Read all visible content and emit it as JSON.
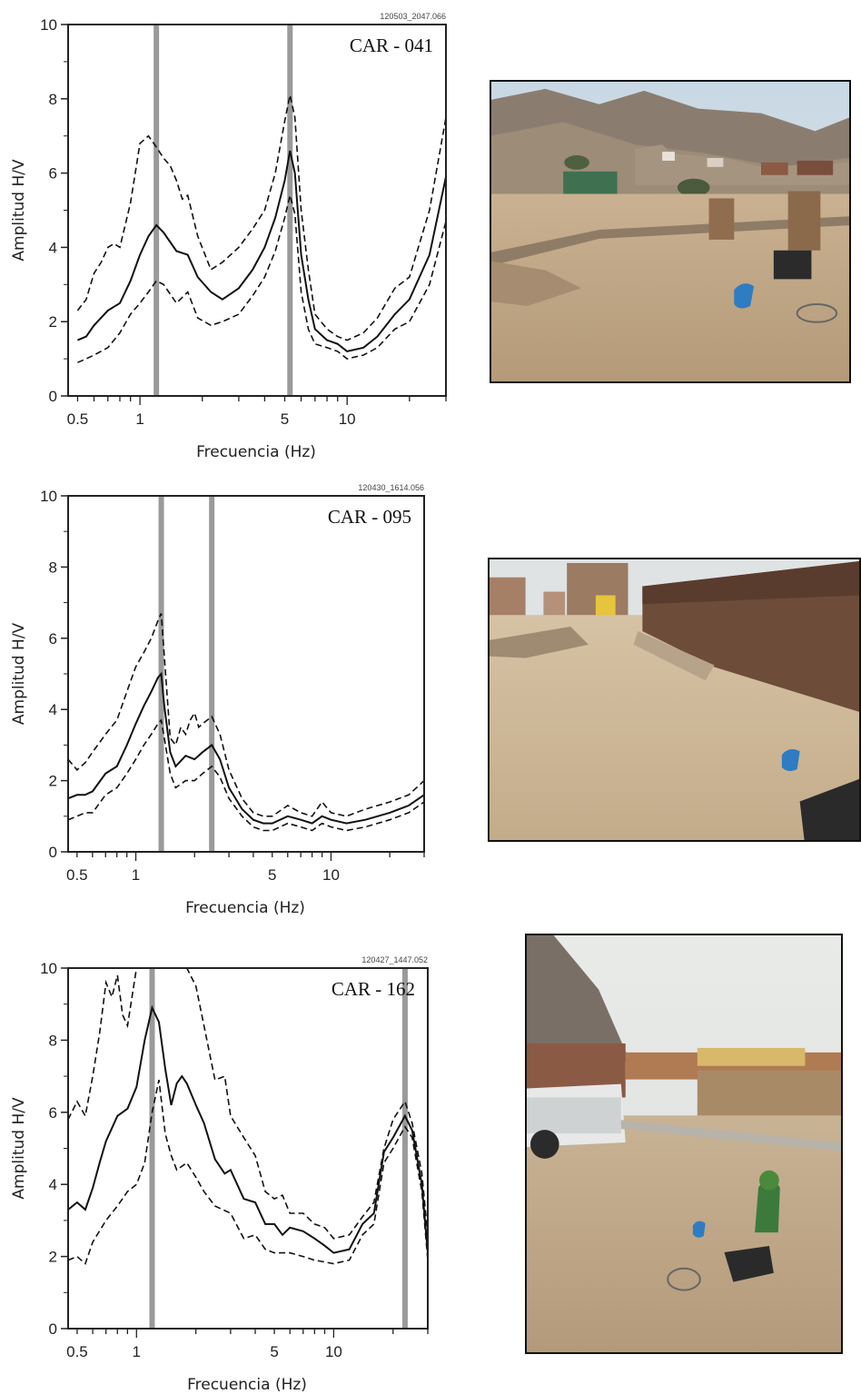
{
  "chart_data": [
    {
      "type": "line",
      "title": "CAR - 041",
      "file_id": "120503_2047.066",
      "xlabel": "Frecuencia (Hz)",
      "ylabel": "Amplitud H/V",
      "xscale": "log",
      "xlim": [
        0.45,
        30
      ],
      "ylim": [
        0,
        10
      ],
      "xticks": [
        {
          "v": 0.5,
          "label": "0.5"
        },
        {
          "v": 1,
          "label": "1"
        },
        {
          "v": 5,
          "label": "5"
        },
        {
          "v": 10,
          "label": "10"
        }
      ],
      "yticks": [
        0,
        2,
        4,
        6,
        8,
        10
      ],
      "peak_lines": [
        1.2,
        5.3
      ],
      "series": [
        {
          "role": "mean",
          "style": "solid",
          "x": [
            0.5,
            0.55,
            0.6,
            0.7,
            0.8,
            0.9,
            1.0,
            1.1,
            1.2,
            1.3,
            1.5,
            1.7,
            1.9,
            2.2,
            2.5,
            3.0,
            3.5,
            4.0,
            4.5,
            5.0,
            5.3,
            5.6,
            6.0,
            6.5,
            7.0,
            8.0,
            9.0,
            10,
            12,
            14,
            17,
            20,
            25,
            30
          ],
          "y": [
            1.5,
            1.6,
            1.9,
            2.3,
            2.5,
            3.1,
            3.8,
            4.3,
            4.6,
            4.4,
            3.9,
            3.8,
            3.2,
            2.8,
            2.6,
            2.9,
            3.4,
            4.0,
            4.8,
            5.8,
            6.6,
            6.0,
            3.8,
            2.6,
            1.8,
            1.5,
            1.4,
            1.2,
            1.3,
            1.6,
            2.2,
            2.6,
            3.8,
            5.9
          ]
        },
        {
          "role": "upper",
          "style": "dashed",
          "x": [
            0.5,
            0.55,
            0.6,
            0.65,
            0.7,
            0.75,
            0.8,
            0.9,
            1.0,
            1.1,
            1.2,
            1.3,
            1.4,
            1.5,
            1.6,
            1.7,
            1.9,
            2.2,
            2.5,
            3.0,
            3.5,
            4.0,
            4.5,
            5.0,
            5.3,
            5.6,
            6.0,
            6.5,
            7.0,
            8.0,
            9.0,
            10,
            12,
            14,
            17,
            20,
            25,
            30
          ],
          "y": [
            2.3,
            2.6,
            3.3,
            3.6,
            4.0,
            4.1,
            4.0,
            5.2,
            6.8,
            7.0,
            6.7,
            6.4,
            6.2,
            5.8,
            5.3,
            5.4,
            4.3,
            3.4,
            3.6,
            4.0,
            4.5,
            5.0,
            6.0,
            7.4,
            8.1,
            7.5,
            5.0,
            3.4,
            2.2,
            1.8,
            1.6,
            1.5,
            1.7,
            2.1,
            2.9,
            3.2,
            5.0,
            7.5
          ]
        },
        {
          "role": "lower",
          "style": "dashed",
          "x": [
            0.5,
            0.55,
            0.6,
            0.7,
            0.8,
            0.9,
            1.0,
            1.1,
            1.2,
            1.3,
            1.5,
            1.7,
            1.9,
            2.2,
            2.5,
            3.0,
            3.5,
            4.0,
            4.5,
            5.0,
            5.3,
            5.6,
            6.0,
            6.5,
            7.0,
            8.0,
            9.0,
            10,
            12,
            14,
            17,
            20,
            25,
            30
          ],
          "y": [
            0.9,
            1.0,
            1.1,
            1.3,
            1.7,
            2.2,
            2.5,
            2.8,
            3.1,
            3.0,
            2.5,
            2.8,
            2.1,
            1.9,
            2.0,
            2.2,
            2.7,
            3.2,
            3.9,
            4.8,
            5.4,
            4.9,
            2.8,
            1.8,
            1.4,
            1.3,
            1.2,
            1.0,
            1.1,
            1.3,
            1.8,
            2.0,
            3.0,
            4.7
          ]
        }
      ]
    },
    {
      "type": "line",
      "title": "CAR - 095",
      "file_id": "120430_1614.056",
      "xlabel": "Frecuencia (Hz)",
      "ylabel": "Amplitud H/V",
      "xscale": "log",
      "xlim": [
        0.45,
        30
      ],
      "ylim": [
        0,
        10
      ],
      "xticks": [
        {
          "v": 0.5,
          "label": "0.5"
        },
        {
          "v": 1,
          "label": "1"
        },
        {
          "v": 5,
          "label": "5"
        },
        {
          "v": 10,
          "label": "10"
        }
      ],
      "yticks": [
        0,
        2,
        4,
        6,
        8,
        10
      ],
      "peak_lines": [
        1.35,
        2.45
      ],
      "series": [
        {
          "role": "mean",
          "style": "solid",
          "x": [
            0.45,
            0.5,
            0.55,
            0.6,
            0.7,
            0.8,
            0.9,
            1.0,
            1.1,
            1.2,
            1.3,
            1.35,
            1.4,
            1.5,
            1.6,
            1.8,
            2.0,
            2.2,
            2.45,
            2.7,
            3.0,
            3.5,
            4.0,
            4.5,
            5.0,
            6.0,
            7.0,
            8.0,
            9.0,
            10,
            12,
            15,
            20,
            25,
            30
          ],
          "y": [
            1.5,
            1.6,
            1.6,
            1.7,
            2.2,
            2.4,
            3.0,
            3.6,
            4.1,
            4.5,
            4.9,
            5.0,
            4.1,
            2.8,
            2.4,
            2.7,
            2.6,
            2.8,
            3.0,
            2.6,
            1.8,
            1.2,
            0.9,
            0.8,
            0.8,
            1.0,
            0.9,
            0.8,
            1.0,
            0.9,
            0.8,
            0.9,
            1.1,
            1.3,
            1.6
          ]
        },
        {
          "role": "upper",
          "style": "dashed",
          "x": [
            0.45,
            0.5,
            0.55,
            0.6,
            0.7,
            0.8,
            0.9,
            1.0,
            1.1,
            1.2,
            1.3,
            1.35,
            1.4,
            1.5,
            1.6,
            1.7,
            1.8,
            1.9,
            2.0,
            2.1,
            2.2,
            2.45,
            2.7,
            3.0,
            3.5,
            4.0,
            4.5,
            5.0,
            6.0,
            7.0,
            8.0,
            9.0,
            10,
            12,
            15,
            20,
            25,
            30
          ],
          "y": [
            2.6,
            2.3,
            2.5,
            2.8,
            3.3,
            3.7,
            4.5,
            5.2,
            5.6,
            6.0,
            6.5,
            6.7,
            5.5,
            3.2,
            3.0,
            3.5,
            3.3,
            3.7,
            3.9,
            3.5,
            3.6,
            3.8,
            3.3,
            2.3,
            1.5,
            1.1,
            1.0,
            1.0,
            1.3,
            1.1,
            1.0,
            1.4,
            1.1,
            1.0,
            1.2,
            1.4,
            1.6,
            2.0
          ]
        },
        {
          "role": "lower",
          "style": "dashed",
          "x": [
            0.45,
            0.5,
            0.55,
            0.6,
            0.7,
            0.8,
            0.9,
            1.0,
            1.1,
            1.2,
            1.3,
            1.35,
            1.4,
            1.5,
            1.6,
            1.8,
            2.0,
            2.2,
            2.45,
            2.7,
            3.0,
            3.5,
            4.0,
            4.5,
            5.0,
            6.0,
            7.0,
            8.0,
            9.0,
            10,
            12,
            15,
            20,
            25,
            30
          ],
          "y": [
            0.9,
            1.0,
            1.1,
            1.1,
            1.6,
            1.8,
            2.2,
            2.6,
            3.0,
            3.3,
            3.6,
            3.7,
            3.2,
            2.2,
            1.8,
            2.0,
            2.0,
            2.2,
            2.4,
            2.1,
            1.5,
            1.0,
            0.7,
            0.6,
            0.6,
            0.8,
            0.7,
            0.6,
            0.8,
            0.7,
            0.6,
            0.7,
            0.9,
            1.1,
            1.4
          ]
        }
      ]
    },
    {
      "type": "line",
      "title": "CAR - 162",
      "file_id": "120427_1447.052",
      "xlabel": "Frecuencia (Hz)",
      "ylabel": "Amplitud H/V",
      "xscale": "log",
      "xlim": [
        0.45,
        30
      ],
      "ylim": [
        0,
        10
      ],
      "xticks": [
        {
          "v": 0.5,
          "label": "0.5"
        },
        {
          "v": 1,
          "label": "1"
        },
        {
          "v": 5,
          "label": "5"
        },
        {
          "v": 10,
          "label": "10"
        }
      ],
      "yticks": [
        0,
        2,
        4,
        6,
        8,
        10
      ],
      "peak_lines": [
        1.2,
        23
      ],
      "series": [
        {
          "role": "mean",
          "style": "solid",
          "x": [
            0.45,
            0.5,
            0.55,
            0.6,
            0.65,
            0.7,
            0.8,
            0.9,
            1.0,
            1.1,
            1.2,
            1.3,
            1.4,
            1.5,
            1.6,
            1.7,
            1.8,
            2.0,
            2.2,
            2.5,
            2.8,
            3.0,
            3.5,
            4.0,
            4.5,
            5.0,
            5.5,
            6.0,
            7.0,
            8.0,
            9.0,
            10,
            12,
            14,
            16,
            18,
            20,
            23,
            25,
            28,
            30
          ],
          "y": [
            3.3,
            3.5,
            3.3,
            3.9,
            4.6,
            5.2,
            5.9,
            6.1,
            6.7,
            8.0,
            8.9,
            8.5,
            7.2,
            6.2,
            6.8,
            7.0,
            6.8,
            6.2,
            5.7,
            4.7,
            4.3,
            4.4,
            3.6,
            3.5,
            2.9,
            2.9,
            2.6,
            2.8,
            2.7,
            2.5,
            2.3,
            2.1,
            2.2,
            2.9,
            3.2,
            4.9,
            5.3,
            5.9,
            5.5,
            4.0,
            2.1
          ]
        },
        {
          "role": "upper",
          "style": "dashed",
          "x": [
            0.45,
            0.5,
            0.55,
            0.6,
            0.65,
            0.7,
            0.75,
            0.8,
            0.85,
            0.9,
            1.0,
            1.1,
            1.2,
            1.3,
            1.4,
            1.5,
            1.6,
            1.7,
            1.8,
            2.0,
            2.2,
            2.5,
            2.8,
            3.0,
            3.5,
            4.0,
            4.5,
            5.0,
            5.5,
            6.0,
            7.0,
            8.0,
            9.0,
            10,
            12,
            14,
            16,
            18,
            20,
            23,
            25,
            28,
            30
          ],
          "y": [
            5.8,
            6.3,
            5.9,
            7.0,
            8.2,
            9.6,
            9.2,
            9.8,
            8.7,
            8.4,
            10,
            10,
            10,
            10,
            10,
            10,
            10,
            10,
            10,
            9.5,
            8.4,
            6.9,
            7.0,
            5.9,
            5.3,
            4.8,
            3.8,
            3.6,
            3.7,
            3.2,
            3.2,
            2.9,
            2.8,
            2.5,
            2.6,
            3.1,
            3.5,
            5.0,
            5.8,
            6.3,
            5.7,
            4.3,
            2.6
          ]
        },
        {
          "role": "lower",
          "style": "dashed",
          "x": [
            0.45,
            0.5,
            0.55,
            0.6,
            0.7,
            0.8,
            0.9,
            1.0,
            1.1,
            1.2,
            1.3,
            1.4,
            1.5,
            1.6,
            1.8,
            2.0,
            2.2,
            2.5,
            3.0,
            3.5,
            4.0,
            4.5,
            5.0,
            6.0,
            7.0,
            8.0,
            10,
            12,
            14,
            16,
            18,
            20,
            23,
            25,
            28,
            30
          ],
          "y": [
            1.9,
            2.0,
            1.8,
            2.4,
            3.0,
            3.4,
            3.8,
            4.0,
            4.6,
            6.0,
            6.9,
            5.4,
            4.8,
            4.4,
            4.6,
            4.2,
            3.8,
            3.4,
            3.2,
            2.5,
            2.6,
            2.2,
            2.1,
            2.1,
            2.0,
            1.9,
            1.8,
            1.9,
            2.6,
            2.9,
            4.6,
            5.0,
            5.6,
            5.3,
            3.8,
            1.9
          ]
        }
      ]
    }
  ],
  "photos": [
    {
      "caption": "site-photo-car-041"
    },
    {
      "caption": "site-photo-car-095"
    },
    {
      "caption": "site-photo-car-162"
    }
  ]
}
